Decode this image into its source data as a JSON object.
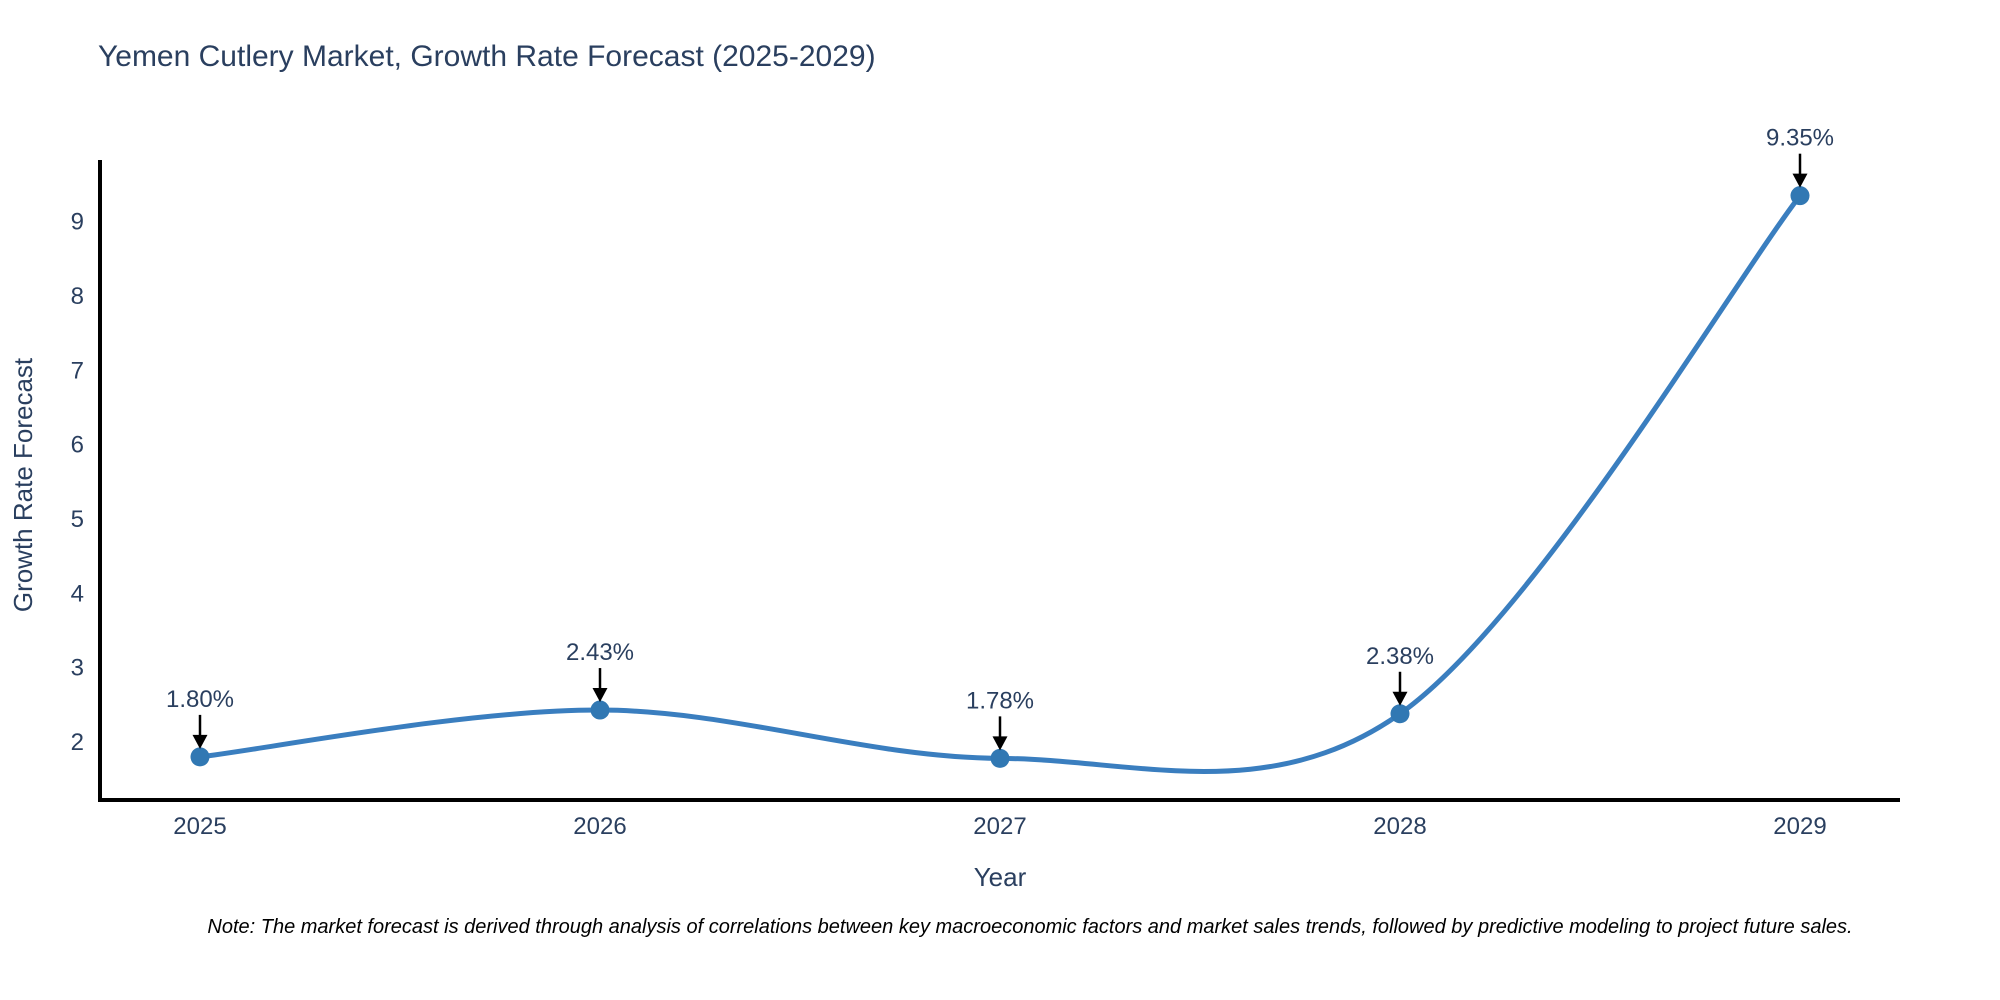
{
  "note": "Note: The market forecast is derived through analysis of correlations between key macroeconomic factors and market sales trends, followed by predictive modeling to project future sales.",
  "chart_data": {
    "type": "line",
    "title": "Yemen Cutlery Market, Growth Rate Forecast (2025-2029)",
    "xlabel": "Year",
    "ylabel": "Growth Rate Forecast",
    "categories": [
      "2025",
      "2026",
      "2027",
      "2028",
      "2029"
    ],
    "series": [
      {
        "name": "Growth Rate Forecast",
        "values": [
          1.8,
          2.43,
          1.78,
          2.38,
          9.35
        ]
      }
    ],
    "point_labels": [
      "1.80%",
      "2.43%",
      "1.78%",
      "2.38%",
      "9.35%"
    ],
    "yticks": [
      2,
      3,
      4,
      5,
      6,
      7,
      8,
      9
    ],
    "ylim": [
      1.22,
      9.83
    ],
    "grid": false,
    "legend": "none",
    "line_shape": "spline",
    "colors": {
      "line": "#3a7ebf",
      "marker": "#3178b3",
      "text": "#2a3f5f",
      "axis": "#000000",
      "arrow": "#000000",
      "background": "#ffffff"
    }
  }
}
